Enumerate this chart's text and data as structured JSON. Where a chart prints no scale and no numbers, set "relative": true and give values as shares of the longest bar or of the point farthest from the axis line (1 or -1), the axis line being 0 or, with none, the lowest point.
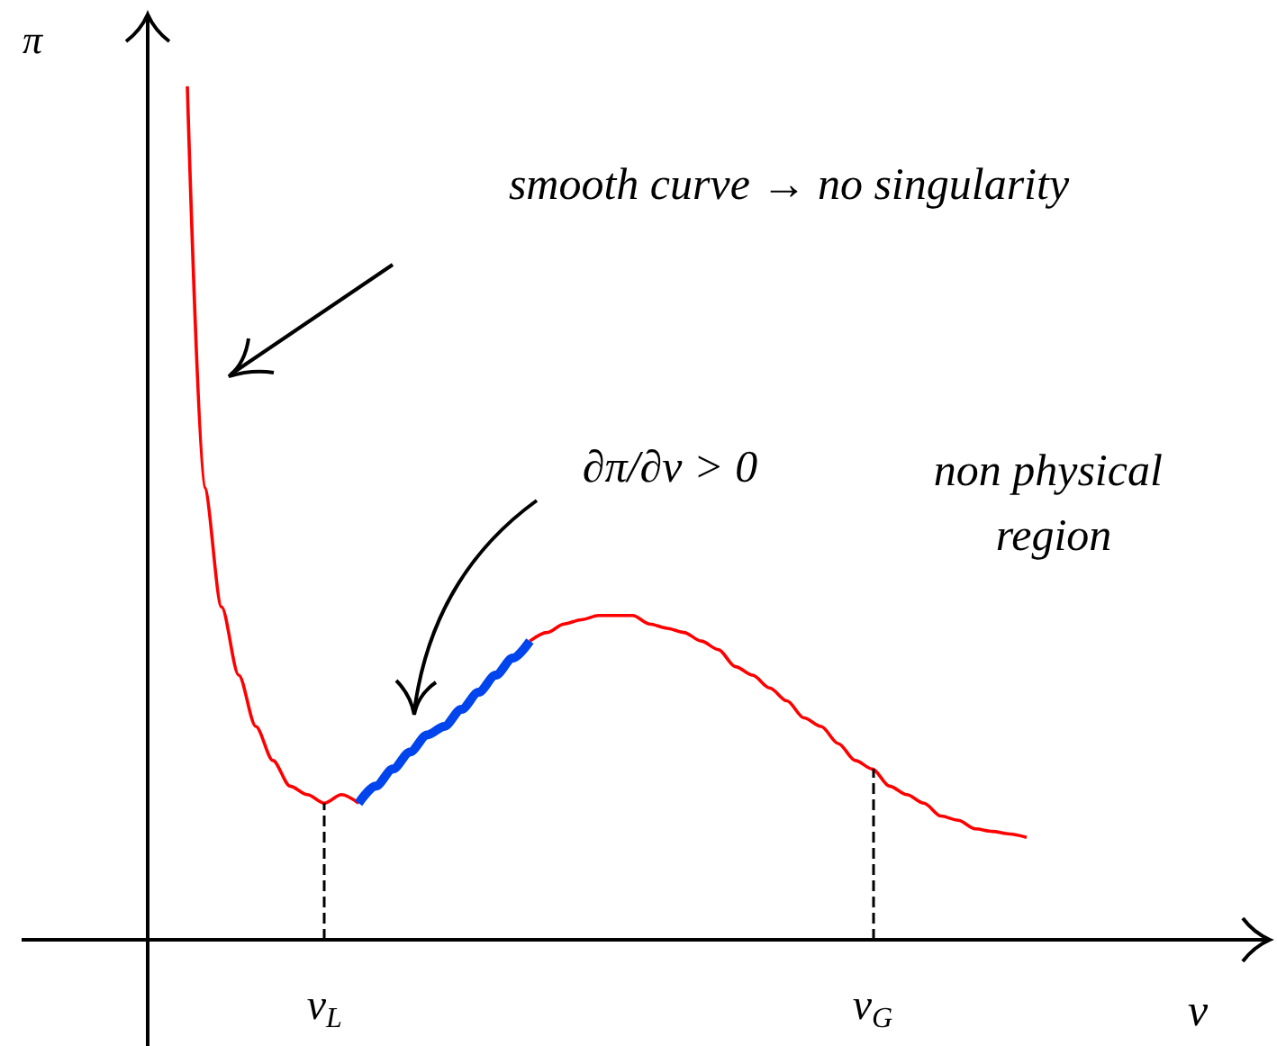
{
  "chart_data": {
    "type": "line",
    "relative": true,
    "xlabel": "v",
    "ylabel": "π",
    "categories": [
      null,
      null,
      null,
      null,
      null,
      null,
      null,
      null,
      "v$_{L}$",
      null,
      null,
      null,
      null,
      null,
      null,
      null,
      null,
      null,
      null,
      null,
      null,
      null,
      null,
      null,
      null,
      null,
      null,
      null,
      null,
      null,
      null,
      null,
      null,
      null,
      null,
      null,
      null,
      null,
      null,
      null,
      "v$_{G}$",
      null,
      null,
      null,
      null,
      null,
      null,
      null,
      null,
      null
    ],
    "series": [
      {
        "color": "#ff0000",
        "values": [
          1.0,
          0.53,
          0.39,
          0.31,
          0.25,
          0.21,
          0.18,
          0.17,
          0.16,
          0.17,
          0.16,
          null,
          null,
          null,
          null,
          null,
          null,
          null,
          null,
          null,
          0.35,
          0.36,
          0.37,
          0.375,
          0.38,
          0.38,
          0.38,
          0.37,
          0.365,
          0.36,
          0.35,
          0.34,
          0.32,
          0.31,
          0.295,
          0.28,
          0.26,
          0.25,
          0.23,
          0.21,
          0.2,
          0.18,
          0.17,
          0.16,
          0.145,
          0.14,
          0.13,
          0.127,
          0.124,
          0.12
        ]
      },
      {
        "color": "#0044ee",
        "values": [
          null,
          null,
          null,
          null,
          null,
          null,
          null,
          null,
          null,
          null,
          0.16,
          0.18,
          0.2,
          0.22,
          0.24,
          0.25,
          0.27,
          0.29,
          0.31,
          0.33,
          0.35,
          null,
          null,
          null,
          null,
          null,
          null,
          null,
          null,
          null,
          null,
          null,
          null,
          null,
          null,
          null,
          null,
          null,
          null,
          null,
          null,
          null,
          null,
          null,
          null,
          null,
          null,
          null,
          null,
          null
        ]
      }
    ],
    "ref_lines": [
      {
        "axis": "x",
        "value": "v$_{L}$",
        "line_style": "dashed"
      },
      {
        "axis": "x",
        "value": "v$_{G}$",
        "line_style": "dashed"
      }
    ],
    "annotations": [
      "smooth curve → no singularity",
      "∂π/∂v > 0",
      "non physical region"
    ],
    "grid": false,
    "marker": "none"
  }
}
